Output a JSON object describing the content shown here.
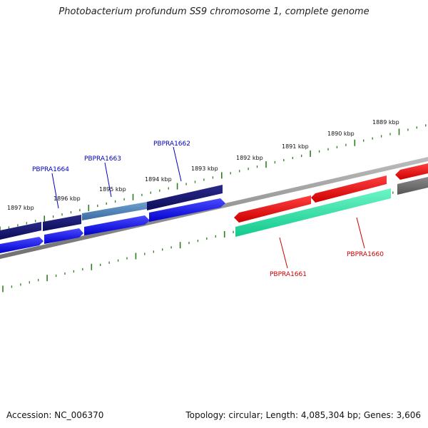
{
  "title": "Photobacterium profundum SS9 chromosome 1, complete genome",
  "footer": {
    "accession": "Accession: NC_006370",
    "summary": "Topology: circular; Length: 4,085,304 bp; Genes: 3,606"
  },
  "ruler": {
    "tick_color": "#2e7d1f",
    "labels": [
      "1889 kbp",
      "1890 kbp",
      "1891 kbp",
      "1892 kbp",
      "1893 kbp",
      "1894 kbp",
      "1895 kbp",
      "1896 kbp",
      "1897 kbp"
    ]
  },
  "genes": [
    {
      "name": "PBPRA1664",
      "strand": "forward",
      "color": "#0000bb"
    },
    {
      "name": "PBPRA1663",
      "strand": "forward",
      "color": "#0000bb"
    },
    {
      "name": "PBPRA1662",
      "strand": "forward",
      "color": "#0000bb"
    },
    {
      "name": "PBPRA1661",
      "strand": "reverse",
      "color": "#cc0000"
    },
    {
      "name": "PBPRA1660",
      "strand": "reverse",
      "color": "#cc0000"
    }
  ],
  "colors": {
    "cds_forward": "#0000ee",
    "gene_forward": "#10106a",
    "cds_reverse": "#ee0000",
    "misc_feature": "#1ee8a6",
    "backbone": "#8a8a8a",
    "other": "#6a6a6a"
  }
}
